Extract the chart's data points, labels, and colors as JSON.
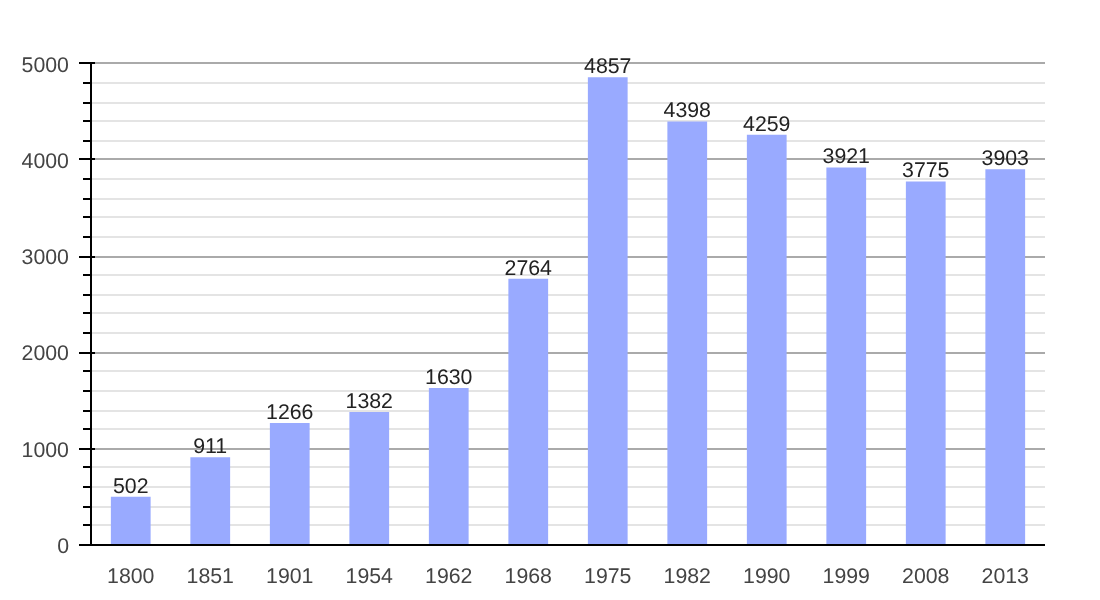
{
  "chart_data": {
    "type": "bar",
    "categories": [
      "1800",
      "1851",
      "1901",
      "1954",
      "1962",
      "1968",
      "1975",
      "1982",
      "1990",
      "1999",
      "2008",
      "2013"
    ],
    "values": [
      502,
      911,
      1266,
      1382,
      1630,
      2764,
      4857,
      4398,
      4259,
      3921,
      3775,
      3903
    ],
    "color": "#99aaff",
    "ylim": [
      0,
      5000
    ],
    "yticks": [
      0,
      1000,
      2000,
      3000,
      4000,
      5000
    ],
    "grid": "y",
    "data_labels": true
  }
}
